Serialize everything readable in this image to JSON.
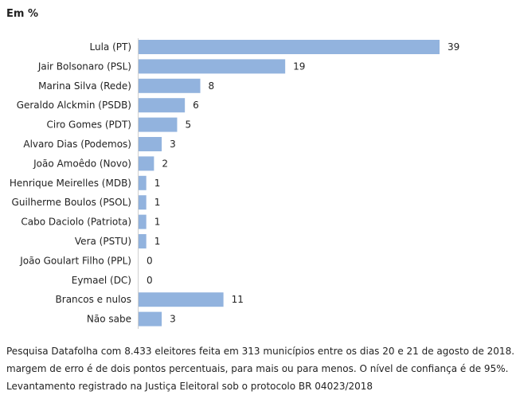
{
  "unit_label": "Em %",
  "chart_data": {
    "type": "bar",
    "orientation": "horizontal",
    "categories": [
      "Lula (PT)",
      "Jair Bolsonaro (PSL)",
      "Marina Silva (Rede)",
      "Geraldo Alckmin (PSDB)",
      "Ciro Gomes (PDT)",
      "Alvaro Dias (Podemos)",
      "João Amoêdo (Novo)",
      "Henrique Meirelles (MDB)",
      "Guilherme Boulos (PSOL)",
      "Cabo Daciolo (Patriota)",
      "Vera (PSTU)",
      "João Goulart Filho (PPL)",
      "Eymael (DC)",
      "Brancos e nulos",
      "Não sabe"
    ],
    "values": [
      39,
      19,
      8,
      6,
      5,
      3,
      2,
      1,
      1,
      1,
      1,
      0,
      0,
      11,
      3
    ],
    "xlim": [
      0,
      39
    ],
    "bar_color": "#92b3de",
    "grid": false,
    "legend": "none",
    "data_labels": true
  },
  "footnote": [
    "Pesquisa Datafolha com 8.433 eleitores feita em 313 municípios entre os dias 20 e 21 de agosto de 2018. A",
    "margem de erro é de dois pontos percentuais, para mais ou para menos. O nível de confiança é de 95%.",
    "Levantamento registrado na Justiça Eleitoral sob o protocolo BR 04023/2018"
  ]
}
